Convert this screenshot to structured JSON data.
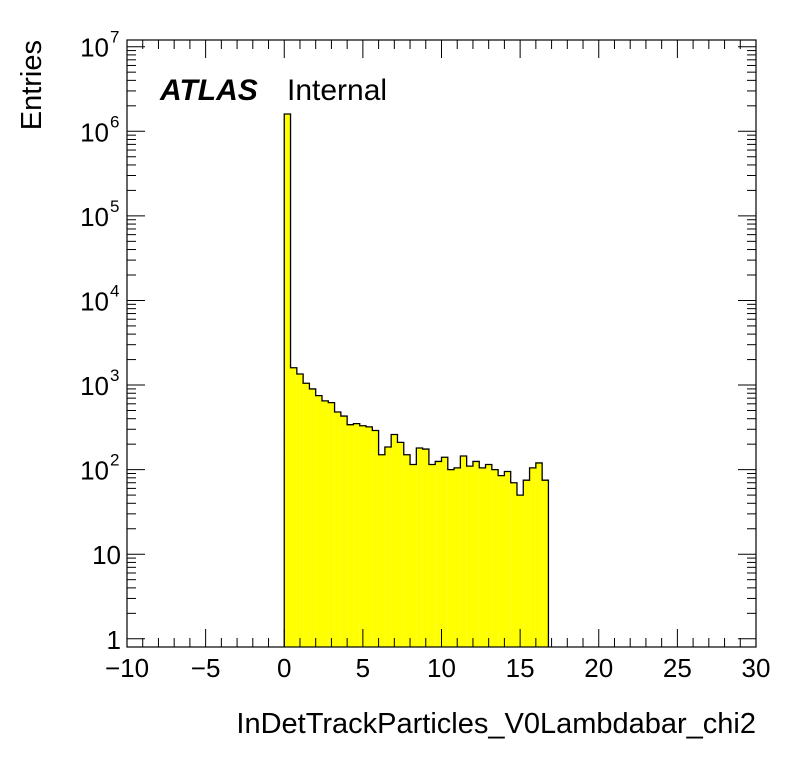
{
  "chart_data": {
    "type": "bar",
    "histogram": true,
    "xlabel": "InDetTrackParticles_V0Lambdabar_chi2",
    "ylabel": "Entries",
    "label_bold": "ATLAS",
    "label_text": "Internal",
    "xlim": [
      -10,
      30
    ],
    "ylim": [
      0.8,
      12000000
    ],
    "log_y": true,
    "x_ticks": [
      "−10",
      "−5",
      "0",
      "5",
      "10",
      "15",
      "20",
      "25",
      "30"
    ],
    "y_ticks": [
      {
        "base": "1",
        "exp": ""
      },
      {
        "base": "10",
        "exp": ""
      },
      {
        "base": "10",
        "exp": "2"
      },
      {
        "base": "10",
        "exp": "3"
      },
      {
        "base": "10",
        "exp": "4"
      },
      {
        "base": "10",
        "exp": "5"
      },
      {
        "base": "10",
        "exp": "6"
      },
      {
        "base": "10",
        "exp": "7"
      }
    ],
    "fill_color": "#ffff00",
    "line_color": "#000000",
    "bin_width": 0.4,
    "bin_start": 0.0,
    "values": [
      1600000,
      1600,
      1350,
      1050,
      900,
      750,
      650,
      620,
      480,
      430,
      340,
      350,
      330,
      320,
      290,
      150,
      185,
      260,
      210,
      150,
      115,
      180,
      175,
      115,
      125,
      140,
      100,
      105,
      145,
      110,
      125,
      105,
      115,
      100,
      85,
      95,
      70,
      50,
      75,
      105,
      120,
      75
    ]
  }
}
